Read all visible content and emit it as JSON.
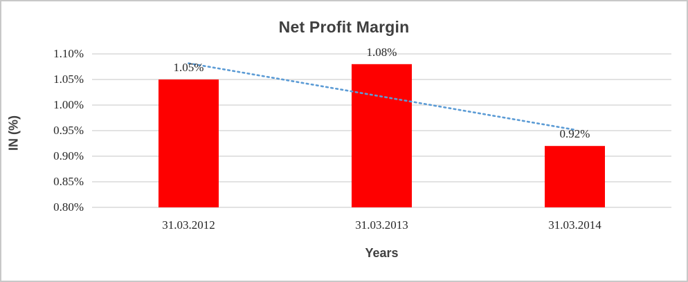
{
  "chart_data": {
    "type": "bar",
    "title": "Net Profit Margin",
    "categories": [
      "31.03.2012",
      "31.03.2013",
      "31.03.2014"
    ],
    "values": [
      1.05,
      1.08,
      0.92
    ],
    "data_labels": [
      "1.05%",
      "1.08%",
      "0.92%"
    ],
    "xlabel": "Years",
    "ylabel": "IN (%)",
    "ylim": [
      0.8,
      1.1
    ],
    "ytick_step": 0.05,
    "ytick_labels": [
      "1.10%",
      "1.05%",
      "1.00%",
      "0.95%",
      "0.90%",
      "0.85%",
      "0.80%"
    ],
    "grid": true,
    "legend": "none",
    "bar_color": "#fe0000",
    "trendline": {
      "type": "linear",
      "style": "dotted",
      "color": "#5b9bd5"
    },
    "colors": {
      "title_text": "#3f3f3f",
      "axis_title_text": "#3f3f3f",
      "tick_label_text": "#262626",
      "gridline": "#d9d9d9",
      "frame_border": "#c8c8c8",
      "background": "#ffffff"
    }
  }
}
